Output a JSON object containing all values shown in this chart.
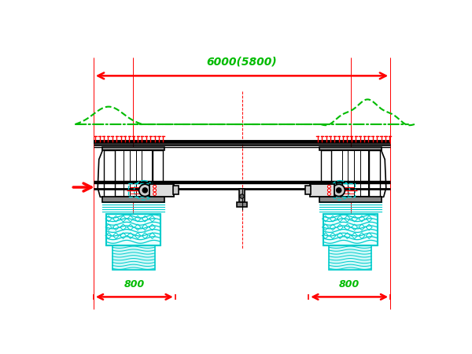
{
  "bg_color": "#ffffff",
  "black": "#000000",
  "red": "#ff0000",
  "green": "#00bb00",
  "cyan": "#00cccc",
  "title_text": "6000(5800)",
  "label_800": "800",
  "fig_width": 6.0,
  "fig_height": 4.5,
  "dpi": 100
}
